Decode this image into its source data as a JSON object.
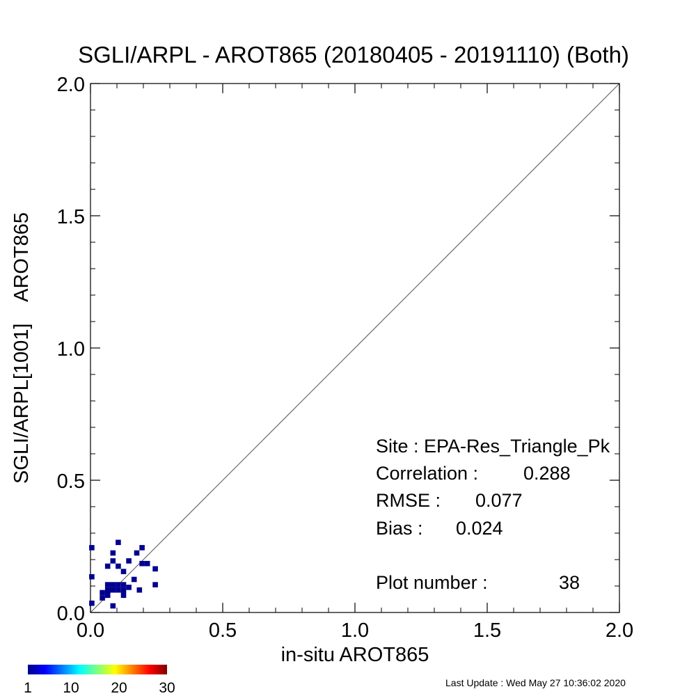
{
  "chart_data": {
    "type": "heatmap",
    "title": "SGLI/ARPL - AROT865 (20180405 - 20191110) (Both)",
    "xlabel": "in-situ AROT865",
    "ylabel": "SGLI/ARPL[1001]    AROT865",
    "xlim": [
      0.0,
      2.0
    ],
    "ylim": [
      0.0,
      2.0
    ],
    "grid": false,
    "x_ticks": [
      "0.0",
      "0.5",
      "1.0",
      "1.5",
      "2.0"
    ],
    "y_ticks": [
      "0.0",
      "0.5",
      "1.0",
      "1.5",
      "2.0"
    ],
    "reference_line": "1:1",
    "points": [
      {
        "x": 0.005,
        "y": 0.245
      },
      {
        "x": 0.005,
        "y": 0.135
      },
      {
        "x": 0.005,
        "y": 0.035
      },
      {
        "x": 0.045,
        "y": 0.055
      },
      {
        "x": 0.045,
        "y": 0.075
      },
      {
        "x": 0.065,
        "y": 0.065
      },
      {
        "x": 0.065,
        "y": 0.085
      },
      {
        "x": 0.065,
        "y": 0.105
      },
      {
        "x": 0.065,
        "y": 0.175
      },
      {
        "x": 0.065,
        "y": 0.075
      },
      {
        "x": 0.085,
        "y": 0.105
      },
      {
        "x": 0.085,
        "y": 0.085
      },
      {
        "x": 0.085,
        "y": 0.195
      },
      {
        "x": 0.085,
        "y": 0.225
      },
      {
        "x": 0.085,
        "y": 0.025
      },
      {
        "x": 0.105,
        "y": 0.105
      },
      {
        "x": 0.105,
        "y": 0.085
      },
      {
        "x": 0.105,
        "y": 0.265
      },
      {
        "x": 0.105,
        "y": 0.175
      },
      {
        "x": 0.125,
        "y": 0.105
      },
      {
        "x": 0.125,
        "y": 0.085
      },
      {
        "x": 0.125,
        "y": 0.065
      },
      {
        "x": 0.125,
        "y": 0.155
      },
      {
        "x": 0.145,
        "y": 0.095
      },
      {
        "x": 0.145,
        "y": 0.195
      },
      {
        "x": 0.165,
        "y": 0.125
      },
      {
        "x": 0.175,
        "y": 0.225
      },
      {
        "x": 0.185,
        "y": 0.085
      },
      {
        "x": 0.195,
        "y": 0.185
      },
      {
        "x": 0.195,
        "y": 0.245
      },
      {
        "x": 0.215,
        "y": 0.185
      },
      {
        "x": 0.245,
        "y": 0.165
      },
      {
        "x": 0.245,
        "y": 0.105
      }
    ],
    "point_color": "#00008f",
    "annotations": {
      "site": "Site : EPA-Res_Triangle_Pk",
      "correlation_label": "Correlation :",
      "correlation_value": "0.288",
      "rmse_label": "RMSE :",
      "rmse_value": "0.077",
      "bias_label": "Bias :",
      "bias_value": "0.024",
      "plot_number_label": "Plot number :",
      "plot_number_value": "38"
    },
    "colorbar": {
      "range": [
        1,
        30
      ],
      "colormap": "jet",
      "ticks": [
        "1",
        "10",
        "20",
        "30"
      ],
      "colors": [
        "#00008f",
        "#0000ff",
        "#0080ff",
        "#00ffff",
        "#80ff80",
        "#ffff00",
        "#ff8000",
        "#ff0000",
        "#800000"
      ]
    },
    "last_update": "Last Update : Wed May 27 10:36:02 2020"
  }
}
